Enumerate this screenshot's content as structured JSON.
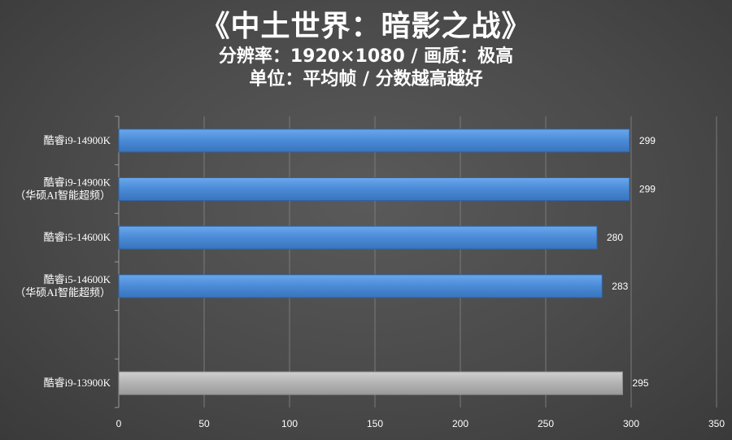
{
  "header": {
    "title": "《中土世界：暗影之战》",
    "subtitle1": "分辨率：1920×1080 / 画质：极高",
    "subtitle2": "单位：平均帧 / 分数越高越好"
  },
  "chart_data": {
    "type": "bar",
    "orientation": "horizontal",
    "categories": [
      [
        "酷睿i9-14900K"
      ],
      [
        "酷睿i9-14900K",
        "（华硕AI智能超频）"
      ],
      [
        "酷睿i5-14600K"
      ],
      [
        "酷睿i5-14600K",
        "（华硕AI智能超频）"
      ],
      [],
      [
        "酷睿i9-13900K"
      ]
    ],
    "values": [
      299,
      299,
      280,
      283,
      null,
      295
    ],
    "bar_colors": [
      "#4a8ad6",
      "#4a8ad6",
      "#4a8ad6",
      "#4a8ad6",
      null,
      "#b3b3b3"
    ],
    "xlim": [
      0,
      350
    ],
    "xticks": [
      0,
      50,
      100,
      150,
      200,
      250,
      300,
      350
    ],
    "grid": true
  }
}
